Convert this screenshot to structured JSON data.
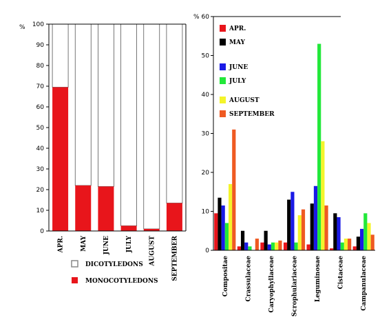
{
  "chart_data": [
    {
      "type": "bar",
      "stacked": true,
      "ylabel": "%",
      "ylim": [
        0,
        100
      ],
      "yticks": [
        0,
        10,
        20,
        30,
        40,
        50,
        60,
        70,
        80,
        90,
        100
      ],
      "categories": [
        "APR.",
        "MAY",
        "JUNE",
        "JULY",
        "AUGUST",
        "SEPTEMBER"
      ],
      "series": [
        {
          "name": "MONOCOTYLEDONS",
          "color": "#e8151b",
          "values": [
            69.5,
            22,
            21.5,
            2.5,
            1,
            13.5
          ]
        },
        {
          "name": "DICOTYLEDONS",
          "color": "#ffffff",
          "values": [
            30.5,
            78,
            78.5,
            97.5,
            99,
            86.5
          ]
        }
      ],
      "legend": [
        "DICOTYLEDONS",
        "MONOCOTYLEDONS"
      ],
      "legend_position": "bottom",
      "grid": false
    },
    {
      "type": "bar",
      "ylabel": "%",
      "ylim": [
        0,
        60
      ],
      "yticks": [
        0,
        10,
        20,
        30,
        40,
        50,
        60
      ],
      "categories": [
        "Compositae",
        "Crassulaceae",
        "Caryophyllaceae",
        "Scrophulariaceae",
        "Leguminosae",
        "Cistaceae",
        "Campanulaceae"
      ],
      "series": [
        {
          "name": "APR.",
          "color": "#e8151b",
          "values": [
            9.5,
            1,
            2,
            2,
            1.5,
            0.5,
            1
          ]
        },
        {
          "name": "MAY",
          "color": "#000000",
          "values": [
            13.5,
            5,
            5,
            13,
            12,
            9.5,
            3.5
          ]
        },
        {
          "name": "JUNE",
          "color": "#1a1ae6",
          "values": [
            11.5,
            2,
            1.5,
            15,
            16.5,
            8.5,
            5.5
          ]
        },
        {
          "name": "JULY",
          "color": "#22e83a",
          "values": [
            7,
            1,
            2,
            2,
            53,
            2,
            9.5
          ]
        },
        {
          "name": "AUGUST",
          "color": "#f4f42a",
          "values": [
            17,
            0,
            2,
            9,
            28,
            3,
            7
          ]
        },
        {
          "name": "SEPTEMBER",
          "color": "#ef5a22",
          "values": [
            31,
            3,
            2.5,
            10.5,
            11.5,
            3,
            4
          ]
        }
      ],
      "legend_position": "top-left",
      "grid": false
    }
  ]
}
